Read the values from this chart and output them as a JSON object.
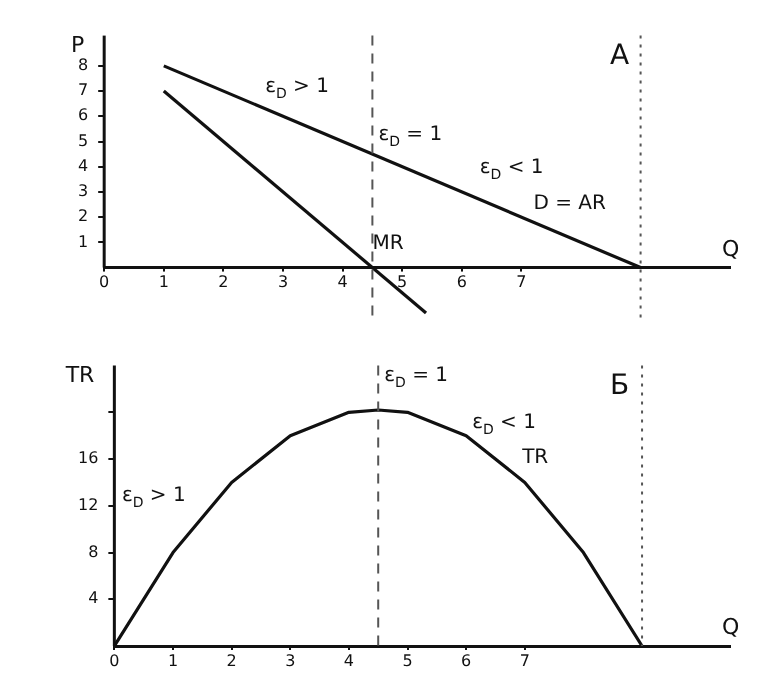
{
  "chart_data": [
    {
      "type": "line",
      "xlabel": "Q",
      "ylabel": "P",
      "xlim": [
        0,
        10.5
      ],
      "ylim": [
        -2,
        9.2
      ],
      "xticks": [
        0,
        1,
        2,
        3,
        4,
        5,
        6,
        7
      ],
      "yticks": [
        1,
        2,
        3,
        4,
        5,
        6,
        7,
        8
      ],
      "grid": false,
      "legend": false,
      "marker": "none",
      "line_style": "solid",
      "series": [
        {
          "name": "D = AR",
          "color": "#111111",
          "x": [
            1,
            9
          ],
          "values": [
            8,
            0
          ]
        },
        {
          "name": "MR",
          "color": "#111111",
          "x": [
            1,
            5.4
          ],
          "values": [
            7,
            -1.8
          ]
        }
      ],
      "ref_lines": [
        {
          "axis": "x",
          "value": 4.5,
          "line_style": "dashed",
          "color": "#555555"
        },
        {
          "axis": "x",
          "value": 9,
          "line_style": "dotted",
          "color": "#555555"
        }
      ],
      "annotations": [
        "А",
        {
          "text": "ε$_{D}$ > 1",
          "x": 2.6,
          "y": 6.4
        },
        {
          "text": "ε$_{D}$ = 1",
          "x": 4.5,
          "y": 4.5
        },
        {
          "text": "ε$_{D}$ < 1",
          "x": 6.2,
          "y": 3.2
        }
      ]
    },
    {
      "type": "line",
      "xlabel": "Q",
      "ylabel": "TR",
      "xlim": [
        0,
        10.5
      ],
      "ylim": [
        0,
        24
      ],
      "xticks": [
        0,
        1,
        2,
        3,
        4,
        5,
        6,
        7
      ],
      "yticks": [
        4,
        8,
        12,
        16,
        {
          "value": 20,
          "label": null
        }
      ],
      "grid": false,
      "legend": false,
      "marker": "none",
      "line_style": "solid",
      "series": [
        {
          "name": "TR",
          "color": "#111111",
          "x": [
            0,
            1,
            2,
            3,
            4,
            4.5,
            5,
            6,
            7,
            8,
            9
          ],
          "values": [
            0,
            8,
            14,
            18,
            20,
            20.2,
            20,
            18,
            14,
            8,
            0
          ]
        }
      ],
      "ref_lines": [
        {
          "axis": "x",
          "value": 4.5,
          "line_style": "dashed",
          "color": "#555555"
        },
        {
          "axis": "x",
          "value": 9,
          "line_style": "dotted",
          "color": "#555555"
        }
      ],
      "annotations": [
        "Б",
        {
          "text": "ε$_{D}$ > 1",
          "x": 1.5,
          "y": 11.25
        },
        {
          "text": "ε$_{D}$ = 1",
          "x": 4.5,
          "y": 21.5
        },
        {
          "text": "ε$_{D}$ < 1",
          "x": 6.0,
          "y": 17.5
        }
      ]
    }
  ]
}
